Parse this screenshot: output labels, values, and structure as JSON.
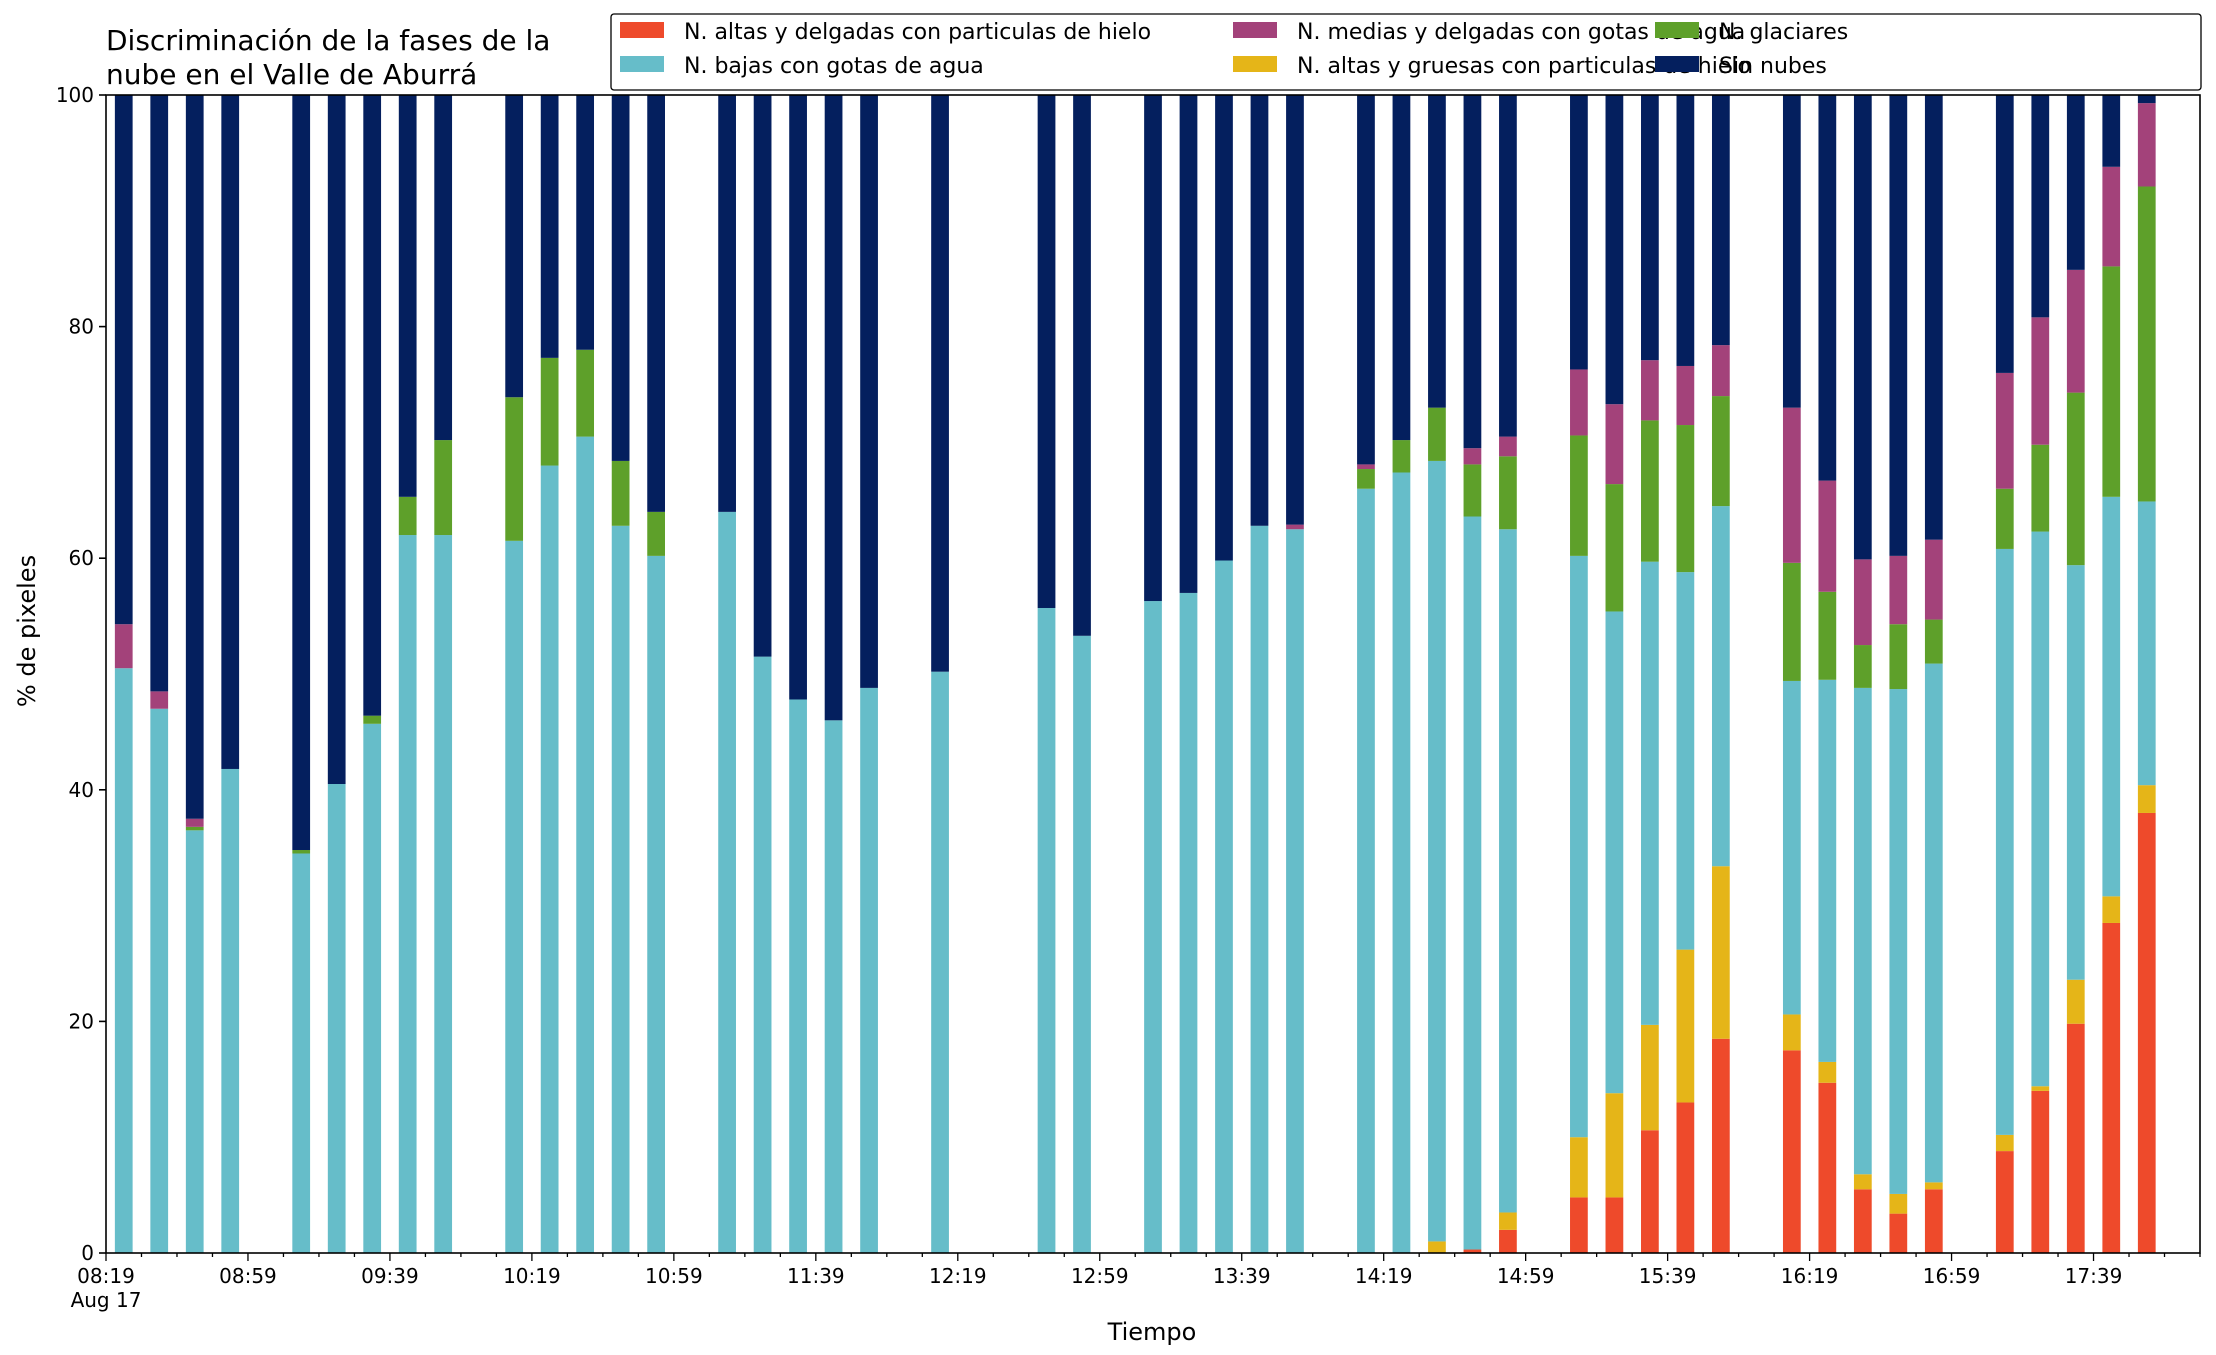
{
  "chart_data": {
    "type": "bar",
    "stacked": true,
    "title": "Discriminación de la fases de la\nnube en el Valle de Aburrá",
    "xlabel": "Tiempo",
    "ylabel": "% de pixeles",
    "ylim": [
      0,
      100
    ],
    "yticks": [
      "0",
      "20",
      "40",
      "60",
      "80",
      "100"
    ],
    "xlim": [
      0,
      59
    ],
    "x_tick_labels": [
      {
        "pos": 0,
        "label": "08:19",
        "sub": "Aug 17"
      },
      {
        "pos": 4,
        "label": "08:59"
      },
      {
        "pos": 8,
        "label": "09:39"
      },
      {
        "pos": 12,
        "label": "10:19"
      },
      {
        "pos": 16,
        "label": "10:59"
      },
      {
        "pos": 20,
        "label": "11:39"
      },
      {
        "pos": 24,
        "label": "12:19"
      },
      {
        "pos": 28,
        "label": "12:59"
      },
      {
        "pos": 32,
        "label": "13:39"
      },
      {
        "pos": 36,
        "label": "14:19"
      },
      {
        "pos": 40,
        "label": "14:59"
      },
      {
        "pos": 44,
        "label": "15:39"
      },
      {
        "pos": 48,
        "label": "16:19"
      },
      {
        "pos": 52,
        "label": "16:59"
      },
      {
        "pos": 56,
        "label": "17:39"
      }
    ],
    "legend_position": "top",
    "series": [
      {
        "name": "N. altas y delgadas con particulas de hielo",
        "color": "#ee4a2b"
      },
      {
        "name": "N. altas y gruesas con particulas de hielo",
        "color": "#e5b518"
      },
      {
        "name": "N. bajas con gotas de agua",
        "color": "#66bdc9"
      },
      {
        "name": "N. glaciares",
        "color": "#5ea02a"
      },
      {
        "name": "N. medias y delgadas con gotas de agua",
        "color": "#a3427a"
      },
      {
        "name": "Sin nubes",
        "color": "#041f5e"
      }
    ],
    "legend_order": [
      0,
      2,
      4,
      1,
      3,
      5
    ],
    "bars": [
      {
        "x": 0,
        "values": [
          0,
          0,
          50.5,
          0,
          3.8,
          45.7
        ]
      },
      {
        "x": 1,
        "values": [
          0,
          0,
          47.0,
          0,
          1.5,
          51.5
        ]
      },
      {
        "x": 2,
        "values": [
          0,
          0,
          36.5,
          0.3,
          0.7,
          62.5
        ]
      },
      {
        "x": 3,
        "values": [
          0,
          0,
          41.8,
          0,
          0,
          58.2
        ]
      },
      {
        "x": 5,
        "values": [
          0,
          0,
          34.5,
          0.3,
          0,
          65.2
        ]
      },
      {
        "x": 6,
        "values": [
          0,
          0,
          40.5,
          0,
          0,
          59.5
        ]
      },
      {
        "x": 7,
        "values": [
          0,
          0,
          45.7,
          0.7,
          0,
          53.6
        ]
      },
      {
        "x": 8,
        "values": [
          0,
          0,
          62.0,
          3.3,
          0,
          34.7
        ]
      },
      {
        "x": 9,
        "values": [
          0,
          0,
          62.0,
          8.2,
          0,
          29.8
        ]
      },
      {
        "x": 11,
        "values": [
          0,
          0,
          61.5,
          12.4,
          0,
          26.1
        ]
      },
      {
        "x": 12,
        "values": [
          0,
          0,
          68.0,
          9.3,
          0,
          22.7
        ]
      },
      {
        "x": 13,
        "values": [
          0,
          0,
          70.5,
          7.5,
          0,
          22.0
        ]
      },
      {
        "x": 14,
        "values": [
          0,
          0,
          62.8,
          5.6,
          0,
          31.6
        ]
      },
      {
        "x": 15,
        "values": [
          0,
          0,
          60.2,
          3.8,
          0,
          36.0
        ]
      },
      {
        "x": 17,
        "values": [
          0,
          0,
          64.0,
          0,
          0,
          36.0
        ]
      },
      {
        "x": 18,
        "values": [
          0,
          0,
          51.5,
          0,
          0,
          48.5
        ]
      },
      {
        "x": 19,
        "values": [
          0,
          0,
          47.8,
          0,
          0,
          52.2
        ]
      },
      {
        "x": 20,
        "values": [
          0,
          0,
          46.0,
          0,
          0,
          54.0
        ]
      },
      {
        "x": 21,
        "values": [
          0,
          0,
          48.8,
          0,
          0,
          51.2
        ]
      },
      {
        "x": 23,
        "values": [
          0,
          0,
          50.2,
          0,
          0,
          49.8
        ]
      },
      {
        "x": 26,
        "values": [
          0,
          0,
          55.7,
          0,
          0,
          44.3
        ]
      },
      {
        "x": 27,
        "values": [
          0,
          0,
          53.3,
          0,
          0,
          46.7
        ]
      },
      {
        "x": 29,
        "values": [
          0,
          0,
          56.3,
          0,
          0,
          43.7
        ]
      },
      {
        "x": 30,
        "values": [
          0,
          0,
          57.0,
          0,
          0,
          43.0
        ]
      },
      {
        "x": 31,
        "values": [
          0,
          0,
          59.8,
          0,
          0,
          40.2
        ]
      },
      {
        "x": 32,
        "values": [
          0,
          0,
          62.8,
          0,
          0,
          37.2
        ]
      },
      {
        "x": 33,
        "values": [
          0,
          0,
          62.5,
          0,
          0.4,
          37.1
        ]
      },
      {
        "x": 35,
        "values": [
          0,
          0,
          66.0,
          1.7,
          0.4,
          31.9
        ]
      },
      {
        "x": 36,
        "values": [
          0,
          0,
          67.4,
          2.8,
          0,
          29.8
        ]
      },
      {
        "x": 37,
        "values": [
          0,
          1.0,
          67.4,
          4.6,
          0,
          27.0
        ]
      },
      {
        "x": 38,
        "values": [
          0.3,
          0,
          63.3,
          4.5,
          1.4,
          30.5
        ]
      },
      {
        "x": 39,
        "values": [
          2.0,
          1.5,
          59.0,
          6.3,
          1.7,
          29.5
        ]
      },
      {
        "x": 41,
        "values": [
          4.8,
          5.2,
          50.2,
          10.4,
          5.7,
          23.7
        ]
      },
      {
        "x": 42,
        "values": [
          4.8,
          9.0,
          41.6,
          11.0,
          6.9,
          26.7
        ]
      },
      {
        "x": 43,
        "values": [
          10.6,
          9.1,
          40.0,
          12.2,
          5.2,
          22.9
        ]
      },
      {
        "x": 44,
        "values": [
          13.0,
          13.2,
          32.6,
          12.7,
          5.1,
          23.4
        ]
      },
      {
        "x": 45,
        "values": [
          18.5,
          14.9,
          31.1,
          9.5,
          4.4,
          21.6
        ]
      },
      {
        "x": 47,
        "values": [
          17.5,
          3.1,
          28.8,
          10.2,
          13.4,
          27.0
        ]
      },
      {
        "x": 48,
        "values": [
          14.7,
          1.8,
          33.0,
          7.6,
          9.6,
          33.3
        ]
      },
      {
        "x": 49,
        "values": [
          5.5,
          1.3,
          42.0,
          3.7,
          7.4,
          40.1
        ]
      },
      {
        "x": 50,
        "values": [
          3.4,
          1.7,
          43.6,
          5.6,
          5.9,
          39.8
        ]
      },
      {
        "x": 51,
        "values": [
          5.5,
          0.6,
          44.8,
          3.8,
          6.9,
          38.4
        ]
      },
      {
        "x": 53,
        "values": [
          8.8,
          1.4,
          50.6,
          5.2,
          10.0,
          24.0
        ]
      },
      {
        "x": 54,
        "values": [
          14.0,
          0.4,
          47.9,
          7.5,
          11.0,
          19.2
        ]
      },
      {
        "x": 55,
        "values": [
          19.8,
          3.8,
          35.8,
          14.9,
          10.6,
          15.1
        ]
      },
      {
        "x": 56,
        "values": [
          28.5,
          2.3,
          34.5,
          19.9,
          8.6,
          6.2
        ]
      },
      {
        "x": 57,
        "values": [
          38.0,
          2.4,
          24.5,
          27.2,
          7.2,
          0.7
        ]
      }
    ]
  }
}
